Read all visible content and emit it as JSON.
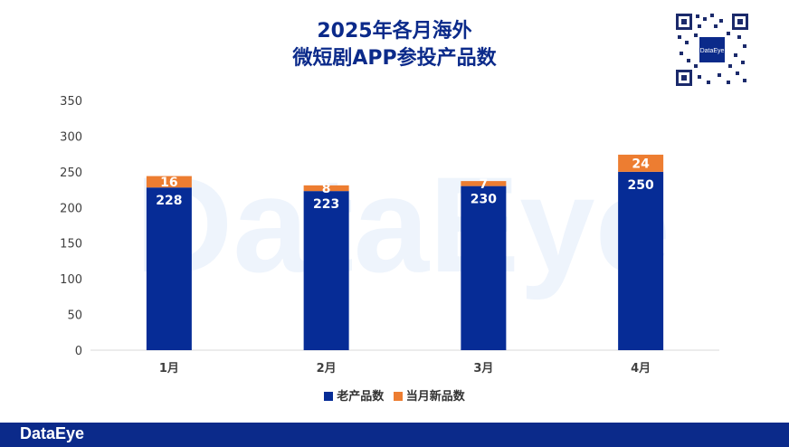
{
  "title_line1": "2025年各月海外",
  "title_line2": "微短剧APP参投产品数",
  "watermark": "DataEye",
  "footer_brand": "DataEye",
  "qr_label": "DataEye",
  "colors": {
    "old": "#062c96",
    "new": "#ed7d31",
    "brand": "#0b2a8a"
  },
  "chart_data": {
    "type": "bar",
    "stacked": true,
    "categories": [
      "1月",
      "2月",
      "3月",
      "4月"
    ],
    "series": [
      {
        "name": "老产品数",
        "values": [
          228,
          223,
          230,
          250
        ]
      },
      {
        "name": "当月新品数",
        "values": [
          16,
          8,
          7,
          24
        ]
      }
    ],
    "ylim": [
      0,
      350
    ],
    "yticks": [
      0,
      50,
      100,
      150,
      200,
      250,
      300,
      350
    ],
    "legend_position": "bottom",
    "grid": false
  }
}
